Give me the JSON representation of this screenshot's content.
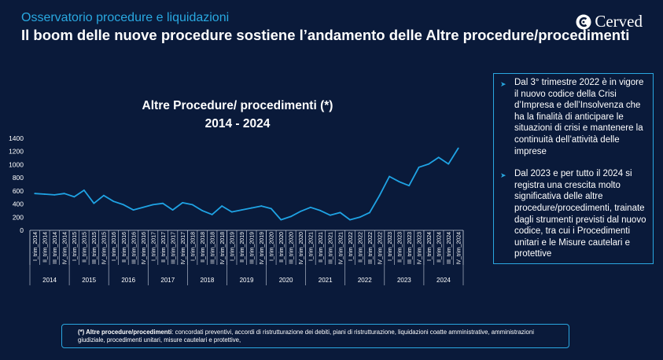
{
  "header": {
    "subtitle": "Osservatorio procedure e liquidazioni",
    "title": "Il boom delle nuove procedure sostiene l’andamento delle Altre procedure/procedimenti"
  },
  "logo": {
    "text": "Cerved"
  },
  "colors": {
    "background": "#0a1a3a",
    "accent": "#29a8e0",
    "line": "#1fa3e4"
  },
  "sidebar": {
    "bullets": [
      "Dal 3° trimestre 2022 è in vigore il nuovo codice della Crisi d’Impresa e dell’Insolvenza che ha la finalità di anticipare le situazioni di crisi e mantenere la continuità dell’attività delle imprese",
      "Dal 2023 e per tutto il 2024 si registra una crescita molto significativa delle altre procedure/procedimenti, trainate dagli strumenti previsti dal nuovo codice, tra cui i Procedimenti unitari e le Misure cautelari e protettive"
    ]
  },
  "footnote": {
    "label": "(*) Altre procedure/procedimenti",
    "text": ": concordati preventivi, accordi di ristrutturazione dei debiti, piani di ristrutturazione, liquidazioni coatte amministrative, amministrazioni giudiziale, procedimenti unitari, misure cautelari e protettive,"
  },
  "chart_data": {
    "type": "line",
    "title": "Altre Procedure/ procedimenti  (*)",
    "subtitle": "2014 - 2024",
    "ylim": [
      0,
      1400
    ],
    "yticks": [
      0,
      200,
      400,
      600,
      800,
      1000,
      1200,
      1400
    ],
    "legend": "none",
    "grid": false,
    "groups": [
      "2014",
      "2015",
      "2016",
      "2017",
      "2018",
      "2019",
      "2020",
      "2021",
      "2022",
      "2023",
      "2024"
    ],
    "categories": [
      "I_trim_2014",
      "II_trim_2014",
      "III_trim_2014",
      "IV_trim_2014",
      "I_trim_2015",
      "II_trim_2015",
      "III_trim_2015",
      "IV_trim_2015",
      "I_trim_2016",
      "II_trim_2016",
      "III_trim_2016",
      "IV_trim_2016",
      "I_trim_2017",
      "II_trim_2017",
      "III_trim_2017",
      "IV_trim_2017",
      "I_trim_2018",
      "II_trim_2018",
      "III_trim_2018",
      "IV_trim_2018",
      "I_trim_2019",
      "II_trim_2019",
      "III_trim_2019",
      "IV_trim_2019",
      "I_trim_2020",
      "II_trim_2020",
      "III_trim_2020",
      "IV_trim_2020",
      "I_trim_2021",
      "II_trim_2021",
      "III_trim_2021",
      "IV_trim_2021",
      "I_trim_2022",
      "II_trim_2022",
      "III_trim_2022",
      "IV_trim_2022",
      "I_trim_2023",
      "II_trim_2023",
      "III_trim_2023",
      "IV_trim_2023",
      "I_trim_2024",
      "II_trim_2024",
      "III_trim_2024",
      "IV_trim_2024"
    ],
    "series": [
      {
        "values": [
          560,
          550,
          540,
          560,
          510,
          610,
          410,
          530,
          440,
          390,
          310,
          350,
          390,
          410,
          310,
          420,
          390,
          300,
          240,
          370,
          280,
          310,
          340,
          370,
          330,
          160,
          210,
          290,
          350,
          300,
          230,
          270,
          160,
          200,
          270,
          530,
          820,
          740,
          680,
          960,
          1010,
          1110,
          1010,
          1250
        ]
      }
    ]
  }
}
